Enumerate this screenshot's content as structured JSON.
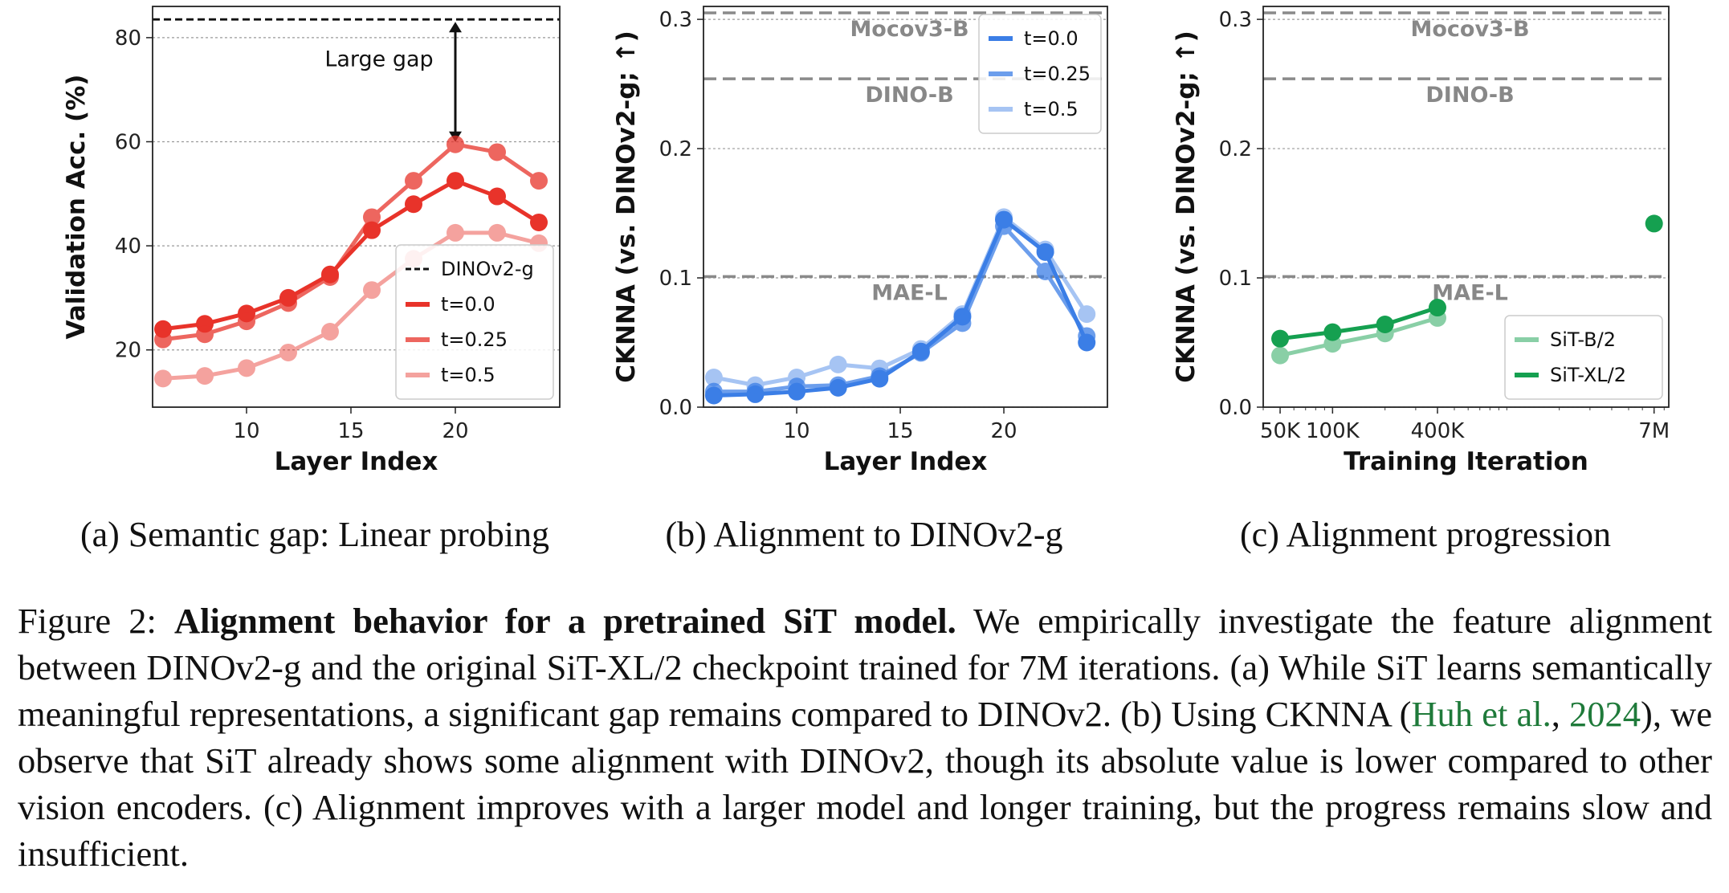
{
  "panels": [
    {
      "id": "a",
      "caption": "(a) Semantic gap: Linear probing",
      "chart_data": {
        "type": "line",
        "xlabel": "Layer Index",
        "ylabel": "Validation Acc. (%)",
        "xlim": [
          5.5,
          25.0
        ],
        "ylim": [
          9.0,
          86.0
        ],
        "xticks": [
          10,
          15,
          20
        ],
        "yticks": [
          20,
          40,
          60,
          80
        ],
        "grid": "horizontal dashed",
        "legend_position": "lower-right",
        "x": [
          6,
          8,
          10,
          12,
          14,
          16,
          18,
          20,
          22,
          24
        ],
        "series": [
          {
            "name": "t=0.0",
            "color": "#e8332a",
            "alpha": 1.0,
            "values": [
              24.0,
              25.0,
              27.0,
              30.0,
              34.5,
              43.0,
              48.0,
              52.5,
              49.5,
              44.5
            ]
          },
          {
            "name": "t=0.25",
            "color": "#e8332a",
            "alpha": 0.75,
            "values": [
              22.0,
              23.0,
              25.5,
              29.0,
              34.0,
              45.5,
              52.5,
              59.5,
              58.0,
              52.5
            ]
          },
          {
            "name": "t=0.5",
            "color": "#e8332a",
            "alpha": 0.45,
            "values": [
              14.5,
              15.0,
              16.5,
              19.5,
              23.5,
              31.5,
              37.5,
              42.5,
              42.5,
              40.5
            ]
          }
        ],
        "reference_lines": [
          {
            "name": "DINOv2-g",
            "y": 83.5,
            "style": "black-dashed"
          }
        ],
        "annotation": {
          "text": "Large gap",
          "from_y": 83.5,
          "to_y": 59.5,
          "x": 20
        }
      }
    },
    {
      "id": "b",
      "caption": "(b) Alignment to DINOv2-g",
      "chart_data": {
        "type": "line",
        "xlabel": "Layer Index",
        "ylabel": "CKNNA (vs. DINOv2-g; ↑)",
        "xlim": [
          5.5,
          25.0
        ],
        "ylim": [
          0.0,
          0.31
        ],
        "xticks": [
          10,
          15,
          20
        ],
        "yticks": [
          "0.0",
          "0.1",
          "0.2",
          "0.3"
        ],
        "grid": "horizontal dashed",
        "legend_position": "top-right",
        "x": [
          6,
          8,
          10,
          12,
          14,
          16,
          18,
          20,
          22,
          24
        ],
        "series": [
          {
            "name": "t=0.0",
            "color": "#3b7ee6",
            "alpha": 1.0,
            "values": [
              0.009,
              0.01,
              0.012,
              0.015,
              0.022,
              0.043,
              0.07,
              0.145,
              0.12,
              0.05
            ]
          },
          {
            "name": "t=0.25",
            "color": "#3b7ee6",
            "alpha": 0.75,
            "values": [
              0.012,
              0.012,
              0.016,
              0.017,
              0.024,
              0.042,
              0.065,
              0.14,
              0.105,
              0.055
            ]
          },
          {
            "name": "t=0.5",
            "color": "#3b7ee6",
            "alpha": 0.45,
            "values": [
              0.023,
              0.017,
              0.023,
              0.033,
              0.03,
              0.045,
              0.072,
              0.147,
              0.122,
              0.072
            ]
          }
        ],
        "reference_lines": [
          {
            "name": "Mocov3-B",
            "y": 0.305
          },
          {
            "name": "DINO-B",
            "y": 0.254
          },
          {
            "name": "MAE-L",
            "y": 0.101
          }
        ]
      }
    },
    {
      "id": "c",
      "caption": "(c) Alignment progression",
      "chart_data": {
        "type": "line",
        "xlabel": "Training Iteration",
        "ylabel": "CKNNA (vs. DINOv2-g; ↑)",
        "xscale": "log",
        "xlim": [
          40000,
          8500000
        ],
        "ylim": [
          0.0,
          0.31
        ],
        "xticks": [
          {
            "value": 50000,
            "label": "50K"
          },
          {
            "value": 100000,
            "label": "100K"
          },
          {
            "value": 400000,
            "label": "400K"
          },
          {
            "value": 7000000,
            "label": "7M"
          }
        ],
        "yticks": [
          "0.0",
          "0.1",
          "0.2",
          "0.3"
        ],
        "grid": "horizontal dashed",
        "legend_position": "lower-right",
        "series": [
          {
            "name": "SiT-B/2",
            "color": "#15a050",
            "alpha": 0.5,
            "x": [
              50000,
              100000,
              200000,
              400000
            ],
            "values": [
              0.04,
              0.049,
              0.057,
              0.069
            ]
          },
          {
            "name": "SiT-XL/2",
            "color": "#15a050",
            "alpha": 1.0,
            "x": [
              50000,
              100000,
              200000,
              400000
            ],
            "values": [
              0.053,
              0.058,
              0.064,
              0.077
            ]
          },
          {
            "name": "",
            "color": "#15a050",
            "alpha": 1.0,
            "x": [
              7000000
            ],
            "values": [
              0.142
            ],
            "markers_only": true
          }
        ],
        "reference_lines": [
          {
            "name": "Mocov3-B",
            "y": 0.305
          },
          {
            "name": "DINO-B",
            "y": 0.254
          },
          {
            "name": "MAE-L",
            "y": 0.101
          }
        ]
      }
    }
  ],
  "figure_caption": {
    "label": "Figure 2: ",
    "title": "Alignment behavior for a pretrained SiT model.",
    "text_before_cite": " We empirically investigate the feature alignment between DINOv2-g and the original SiT-XL/2 checkpoint trained for 7M iterations. (a) While SiT learns semantically meaningful representations, a significant gap remains compared to DINOv2. (b) Using CKNNA (",
    "cite_author": "Huh et al.",
    "cite_sep": ", ",
    "cite_year": "2024",
    "text_after_cite": "), we observe that SiT already shows some alignment with DINOv2, though its absolute value is lower compared to other vision encoders. (c) Alignment improves with a larger model and longer training, but the progress remains slow and insufficient."
  }
}
